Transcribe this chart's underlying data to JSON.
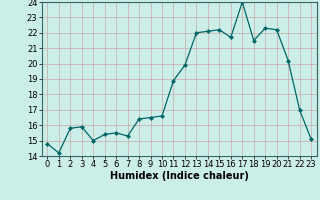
{
  "x": [
    0,
    1,
    2,
    3,
    4,
    5,
    6,
    7,
    8,
    9,
    10,
    11,
    12,
    13,
    14,
    15,
    16,
    17,
    18,
    19,
    20,
    21,
    22,
    23
  ],
  "y": [
    14.8,
    14.2,
    15.8,
    15.9,
    15.0,
    15.4,
    15.5,
    15.3,
    16.4,
    16.5,
    16.6,
    18.9,
    19.9,
    22.0,
    22.1,
    22.2,
    21.7,
    24.0,
    21.5,
    22.3,
    22.2,
    20.2,
    17.0,
    15.1
  ],
  "xlabel": "Humidex (Indice chaleur)",
  "xlim": [
    -0.5,
    23.5
  ],
  "ylim": [
    14,
    24
  ],
  "yticks": [
    14,
    15,
    16,
    17,
    18,
    19,
    20,
    21,
    22,
    23,
    24
  ],
  "xticks": [
    0,
    1,
    2,
    3,
    4,
    5,
    6,
    7,
    8,
    9,
    10,
    11,
    12,
    13,
    14,
    15,
    16,
    17,
    18,
    19,
    20,
    21,
    22,
    23
  ],
  "line_color": "#006666",
  "marker_color": "#006666",
  "bg_color": "#cceee8",
  "grid_color": "#aaddcc",
  "xlabel_fontsize": 7,
  "tick_fontsize": 6
}
